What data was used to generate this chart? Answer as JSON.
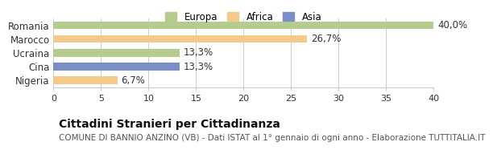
{
  "categories": [
    "Romania",
    "Marocco",
    "Ucraina",
    "Cina",
    "Nigeria"
  ],
  "values": [
    40.0,
    26.7,
    13.3,
    13.3,
    6.7
  ],
  "labels": [
    "40,0%",
    "26,7%",
    "13,3%",
    "13,3%",
    "6,7%"
  ],
  "bar_colors": [
    "#b5cc8e",
    "#f5c98a",
    "#b5cc8e",
    "#7b8fc7",
    "#f5c98a"
  ],
  "legend_items": [
    {
      "label": "Europa",
      "color": "#b5cc8e"
    },
    {
      "label": "Africa",
      "color": "#f5c98a"
    },
    {
      "label": "Asia",
      "color": "#7b8fc7"
    }
  ],
  "xlim": [
    0,
    40
  ],
  "xticks": [
    0,
    5,
    10,
    15,
    20,
    25,
    30,
    35,
    40
  ],
  "title": "Cittadini Stranieri per Cittadinanza",
  "subtitle": "COMUNE DI BANNIO ANZINO (VB) - Dati ISTAT al 1° gennaio di ogni anno - Elaborazione TUTTITALIA.IT",
  "background_color": "#ffffff",
  "bar_height": 0.55,
  "label_fontsize": 8.5,
  "title_fontsize": 10,
  "subtitle_fontsize": 7.5
}
